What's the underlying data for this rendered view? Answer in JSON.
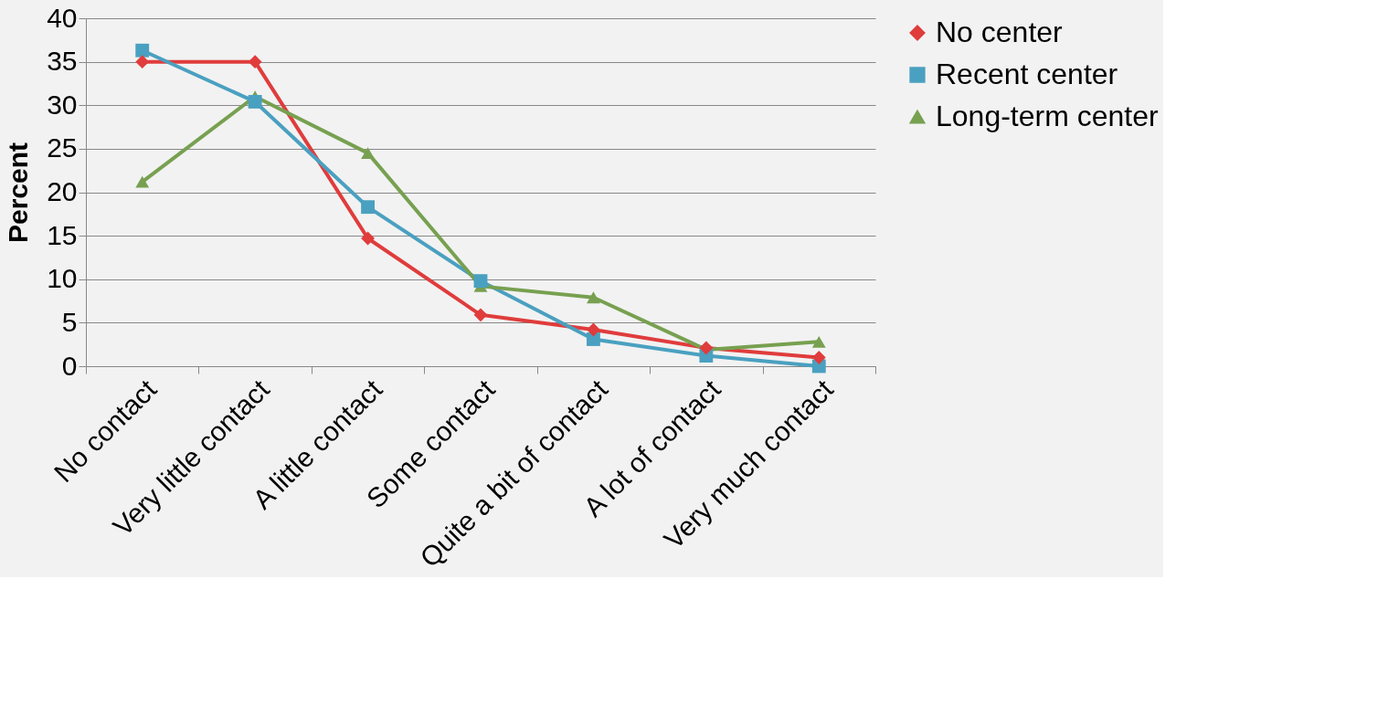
{
  "chart_data": {
    "type": "line",
    "ylabel": "Percent",
    "categories": [
      "No contact",
      "Very little contact",
      "A little contact",
      "Some contact",
      "Quite a bit of contact",
      "A lot of contact",
      "Very much contact"
    ],
    "series": [
      {
        "name": "No center",
        "color": "#e03c3c",
        "marker": "diamond",
        "values": [
          35.0,
          35.0,
          14.7,
          5.9,
          4.2,
          2.1,
          1.0
        ]
      },
      {
        "name": "Recent center",
        "color": "#4aa0c0",
        "marker": "square",
        "values": [
          36.3,
          30.4,
          18.3,
          9.8,
          3.1,
          1.2,
          0.0
        ]
      },
      {
        "name": "Long-term center",
        "color": "#77a050",
        "marker": "triangle",
        "values": [
          21.2,
          31.0,
          24.5,
          9.2,
          7.9,
          1.9,
          2.8
        ]
      }
    ],
    "ylim": [
      0,
      40
    ],
    "yticks": [
      0,
      5,
      10,
      15,
      20,
      25,
      30,
      35,
      40
    ],
    "grid": "y",
    "legend": "right",
    "line_style": "solid"
  }
}
